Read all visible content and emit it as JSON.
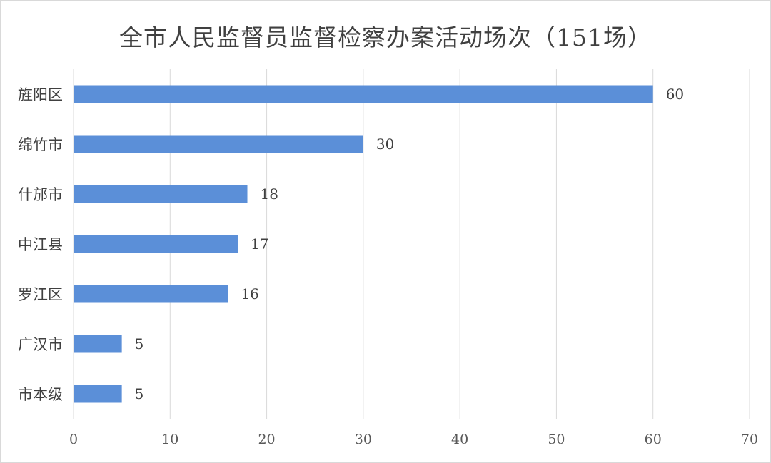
{
  "chart_data": {
    "type": "bar",
    "orientation": "horizontal",
    "title": "全市人民监督员监督检察办案活动场次（151场）",
    "categories": [
      "旌阳区",
      "绵竹市",
      "什邡市",
      "中江县",
      "罗江区",
      "广汉市",
      "市本级"
    ],
    "values": [
      60,
      30,
      18,
      17,
      16,
      5,
      5
    ],
    "xlim": [
      0,
      70
    ],
    "xticks": [
      0,
      10,
      20,
      30,
      40,
      50,
      60,
      70
    ],
    "xlabel": "",
    "ylabel": "",
    "grid": "vertical",
    "data_labels": true,
    "bar_color": "#5b8fd8"
  }
}
